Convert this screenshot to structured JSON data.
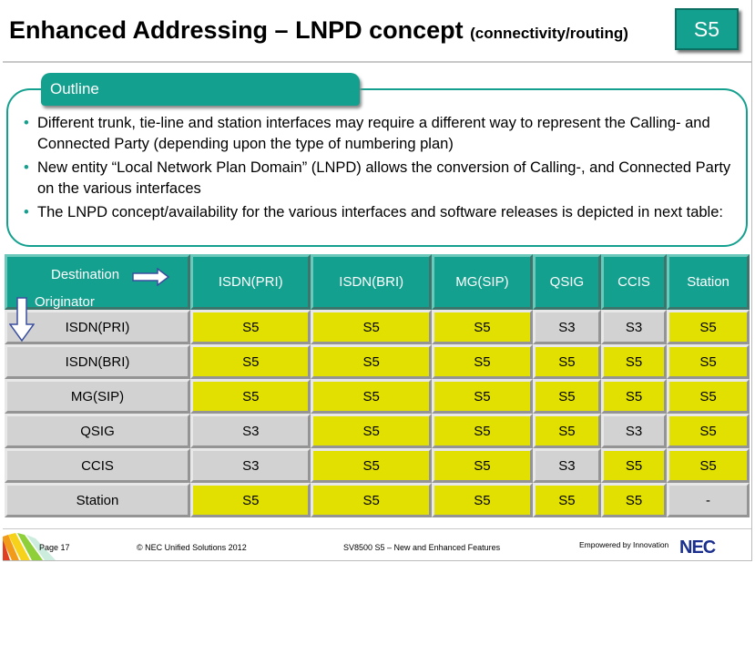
{
  "title": {
    "main": "Enhanced Addressing – LNPD concept",
    "sub": "(connectivity/routing)"
  },
  "badge": "S5",
  "outline": {
    "label": "Outline",
    "bullets": [
      "Different trunk, tie-line and station interfaces may require a different way to represent the Calling- and Connected Party (depending upon the type of numbering plan)",
      "New entity “Local Network Plan Domain” (LNPD) allows the conversion of Calling-, and Connected Party on the various interfaces",
      "The LNPD concept/availability for the various interfaces and software releases  is depicted in next table:"
    ]
  },
  "table": {
    "corner": {
      "destination": "Destination",
      "originator": "Originator"
    },
    "columns": [
      "ISDN(PRI)",
      "ISDN(BRI)",
      "MG(SIP)",
      "QSIG",
      "CCIS",
      "Station"
    ],
    "rows": [
      {
        "label": "ISDN(PRI)",
        "cells": [
          "S5",
          "S5",
          "S5",
          "S3",
          "S3",
          "S5"
        ]
      },
      {
        "label": "ISDN(BRI)",
        "cells": [
          "S5",
          "S5",
          "S5",
          "S5",
          "S5",
          "S5"
        ]
      },
      {
        "label": "MG(SIP)",
        "cells": [
          "S5",
          "S5",
          "S5",
          "S5",
          "S5",
          "S5"
        ]
      },
      {
        "label": "QSIG",
        "cells": [
          "S3",
          "S5",
          "S5",
          "S5",
          "S3",
          "S5"
        ]
      },
      {
        "label": "CCIS",
        "cells": [
          "S3",
          "S5",
          "S5",
          "S3",
          "S5",
          "S5"
        ]
      },
      {
        "label": "Station",
        "cells": [
          "S5",
          "S5",
          "S5",
          "S5",
          "S5",
          "-"
        ]
      }
    ]
  },
  "footer": {
    "page": "Page 17",
    "copyright": "© NEC Unified Solutions 2012",
    "doc": "SV8500 S5 – New and Enhanced Features",
    "tagline": "Empowered by Innovation",
    "logo": "NEC"
  },
  "colors": {
    "accent": "#14a08e",
    "s5": "#e2e000",
    "grey": "#d2d2d2",
    "logo": "#1b2f8f"
  },
  "icons": [
    "right-arrow-icon",
    "down-arrow-icon",
    "footer-stripes-icon"
  ]
}
